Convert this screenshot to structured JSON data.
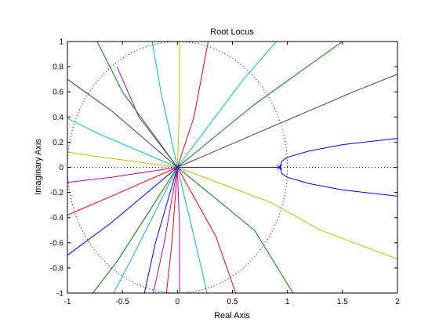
{
  "chart_data": {
    "type": "line",
    "title": "Root Locus",
    "xlabel": "Real Axis",
    "ylabel": "Imaginary Axis",
    "xlim": [
      -1,
      2
    ],
    "ylim": [
      -1,
      1
    ],
    "x_ticks": [
      -1,
      -0.5,
      0,
      0.5,
      1,
      1.5,
      2
    ],
    "x_tick_labels": [
      "-1",
      "-0.5",
      "0",
      "0.5",
      "1",
      "1.5",
      "2"
    ],
    "y_ticks": [
      -1,
      -0.8,
      -0.6,
      -0.4,
      -0.2,
      0,
      0.2,
      0.4,
      0.6,
      0.8,
      1
    ],
    "y_tick_labels": [
      "-1",
      "-0.8",
      "-0.6",
      "-0.4",
      "-0.2",
      "0",
      "0.2",
      "0.4",
      "0.6",
      "0.8",
      "1"
    ],
    "grid": false,
    "unit_circle": {
      "center": [
        0,
        0
      ],
      "radius": 1,
      "style": "dotted"
    },
    "real_axis_reference": {
      "y": 0,
      "style": "dotted"
    },
    "poles": [
      [
        0.93,
        0
      ],
      [
        0,
        0
      ]
    ],
    "colors": {
      "blue": "#0000ff",
      "green": "#008000",
      "red": "#ff0000",
      "cyan": "#00bfbf",
      "magenta": "#bf00bf",
      "olive": "#bfbf00",
      "black": "#404040"
    },
    "series": [
      {
        "color": "blue",
        "points": [
          [
            0.93,
            0
          ],
          [
            0.95,
            0.05
          ],
          [
            1.0,
            0.08
          ],
          [
            1.2,
            0.13
          ],
          [
            1.5,
            0.18
          ],
          [
            2.0,
            0.23
          ]
        ]
      },
      {
        "color": "blue",
        "points": [
          [
            0.93,
            0
          ],
          [
            0.95,
            -0.05
          ],
          [
            1.0,
            -0.08
          ],
          [
            1.2,
            -0.13
          ],
          [
            1.5,
            -0.18
          ],
          [
            2.0,
            -0.23
          ]
        ]
      },
      {
        "color": "blue",
        "points": [
          [
            0,
            0
          ],
          [
            0.93,
            0
          ]
        ]
      },
      {
        "color": "black",
        "points": [
          [
            0,
            0
          ],
          [
            0.8,
            0.3
          ],
          [
            1.6,
            0.6
          ],
          [
            2.0,
            0.74
          ]
        ]
      },
      {
        "color": "green",
        "points": [
          [
            0,
            0
          ],
          [
            0.7,
            0.5
          ],
          [
            1.5,
            1.0
          ]
        ]
      },
      {
        "color": "cyan",
        "points": [
          [
            0,
            0
          ],
          [
            0.6,
            0.7
          ],
          [
            0.9,
            1.0
          ]
        ]
      },
      {
        "color": "red",
        "points": [
          [
            0,
            0
          ],
          [
            0.15,
            0.4
          ],
          [
            0.28,
            1.0
          ]
        ]
      },
      {
        "color": "olive",
        "points": [
          [
            0,
            0
          ],
          [
            0.02,
            0.5
          ],
          [
            0.02,
            1.0
          ]
        ]
      },
      {
        "color": "cyan",
        "points": [
          [
            0,
            0
          ],
          [
            -0.15,
            0.6
          ],
          [
            -0.23,
            1.0
          ]
        ]
      },
      {
        "color": "magenta",
        "points": [
          [
            0,
            0
          ],
          [
            -0.35,
            0.4
          ],
          [
            -0.55,
            0.8
          ]
        ]
      },
      {
        "color": "green",
        "points": [
          [
            0,
            0
          ],
          [
            -0.5,
            0.6
          ],
          [
            -0.73,
            1.0
          ]
        ]
      },
      {
        "color": "black",
        "points": [
          [
            0,
            0
          ],
          [
            -0.6,
            0.45
          ],
          [
            -1.0,
            0.7
          ]
        ]
      },
      {
        "color": "cyan",
        "points": [
          [
            0,
            0
          ],
          [
            -0.7,
            0.26
          ],
          [
            -1.0,
            0.39
          ]
        ]
      },
      {
        "color": "olive",
        "points": [
          [
            0,
            0
          ],
          [
            -0.6,
            0.07
          ],
          [
            -1.0,
            0.12
          ]
        ]
      },
      {
        "color": "magenta",
        "points": [
          [
            0,
            0
          ],
          [
            -0.6,
            -0.08
          ],
          [
            -1.0,
            -0.12
          ]
        ]
      },
      {
        "color": "red",
        "points": [
          [
            0,
            0
          ],
          [
            -0.6,
            -0.23
          ],
          [
            -1.0,
            -0.38
          ]
        ]
      },
      {
        "color": "blue",
        "points": [
          [
            0,
            0
          ],
          [
            -0.6,
            -0.44
          ],
          [
            -1.0,
            -0.7
          ]
        ]
      },
      {
        "color": "green",
        "points": [
          [
            0,
            0
          ],
          [
            -0.55,
            -0.75
          ],
          [
            -0.77,
            -1.0
          ]
        ]
      },
      {
        "color": "cyan",
        "points": [
          [
            0,
            0
          ],
          [
            -0.4,
            -0.7
          ],
          [
            -0.58,
            -1.0
          ]
        ]
      },
      {
        "color": "blue",
        "points": [
          [
            0,
            0
          ],
          [
            -0.2,
            -0.6
          ],
          [
            -0.3,
            -1.0
          ]
        ]
      },
      {
        "color": "magenta",
        "points": [
          [
            0,
            0
          ],
          [
            -0.12,
            -0.6
          ],
          [
            -0.22,
            -1.0
          ]
        ]
      },
      {
        "color": "red",
        "points": [
          [
            0,
            0
          ],
          [
            -0.05,
            -0.6
          ],
          [
            -0.1,
            -1.0
          ]
        ]
      },
      {
        "color": "magenta",
        "points": [
          [
            0,
            0
          ],
          [
            0.02,
            -0.5
          ],
          [
            0.02,
            -1.0
          ]
        ]
      },
      {
        "color": "cyan",
        "points": [
          [
            0,
            0
          ],
          [
            0.15,
            -0.55
          ],
          [
            0.27,
            -1.0
          ]
        ]
      },
      {
        "color": "red",
        "points": [
          [
            0,
            0
          ],
          [
            0.35,
            -0.55
          ],
          [
            0.53,
            -1.0
          ]
        ]
      },
      {
        "color": "green",
        "points": [
          [
            0,
            0
          ],
          [
            0.7,
            -0.5
          ],
          [
            1.05,
            -1.0
          ]
        ]
      },
      {
        "color": "olive",
        "points": [
          [
            0,
            0
          ],
          [
            0.85,
            -0.28
          ],
          [
            1.3,
            -0.5
          ],
          [
            2.0,
            -0.73
          ]
        ]
      }
    ]
  }
}
